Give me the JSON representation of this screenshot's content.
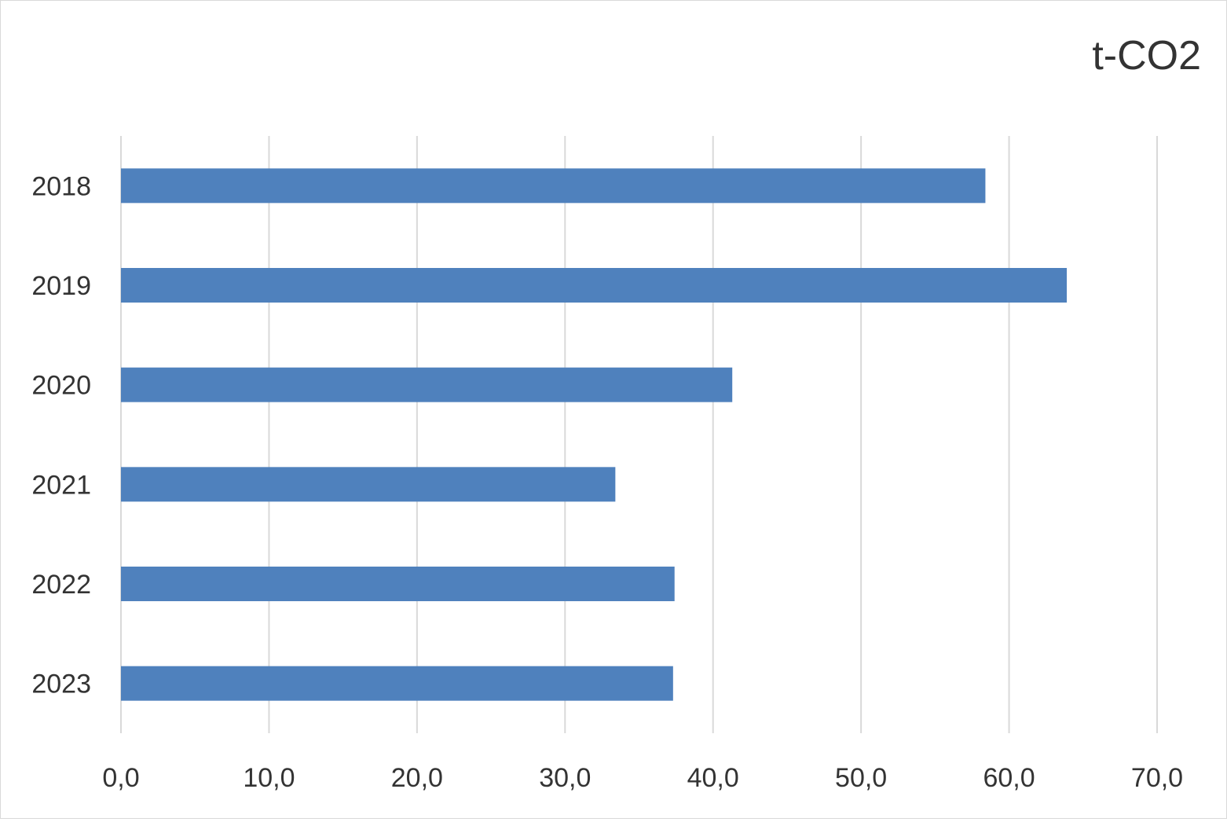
{
  "chart_data": {
    "type": "bar",
    "orientation": "horizontal",
    "unit_label": "t-CO2",
    "categories": [
      "2018",
      "2019",
      "2020",
      "2021",
      "2022",
      "2023"
    ],
    "values": [
      58.4,
      63.9,
      41.3,
      33.4,
      37.4,
      37.3
    ],
    "x_ticks": [
      "0,0",
      "10,0",
      "20,0",
      "30,0",
      "40,0",
      "50,0",
      "60,0",
      "70,0"
    ],
    "xlim": [
      0,
      70
    ],
    "grid": "vertical",
    "bar_color": "#4f81bd",
    "grid_color": "#d9d9d9",
    "text_color": "#333333"
  }
}
